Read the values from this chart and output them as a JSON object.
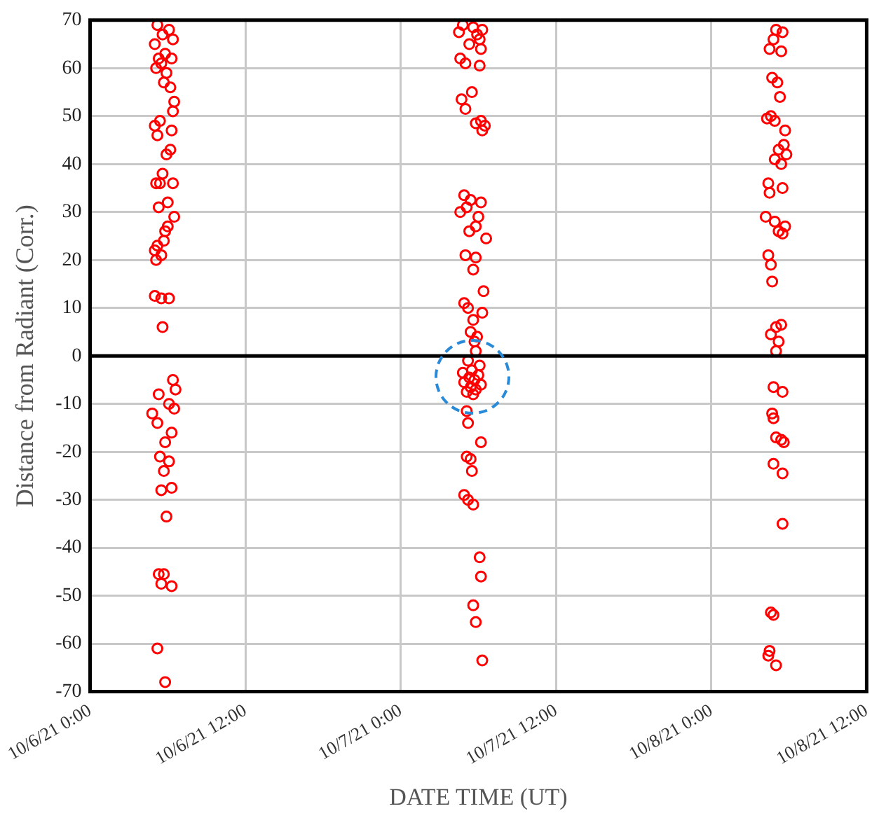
{
  "chart_data": {
    "type": "scatter",
    "xlabel": "DATE TIME (UT)",
    "ylabel": "Distance from Radiant (Corr.)",
    "x": [
      "--10-06T05:12",
      "--10-06T06:06",
      "--10-06T05:36",
      "--10-06T06:24",
      "--10-06T05:00",
      "--10-06T05:48",
      "--10-06T05:18",
      "--10-06T06:18",
      "--10-06T05:30",
      "--10-06T05:06",
      "--10-06T05:54",
      "--10-06T05:42",
      "--10-06T06:12",
      "--10-06T06:30",
      "--10-06T06:24",
      "--10-06T05:24",
      "--10-06T05:00",
      "--10-06T06:18",
      "--10-06T05:12",
      "--10-06T06:12",
      "--10-06T05:54",
      "--10-06T05:36",
      "--10-06T05:06",
      "--10-06T05:24",
      "--10-06T06:24",
      "--10-06T06:00",
      "--10-06T05:18",
      "--10-06T06:30",
      "--10-06T06:00",
      "--10-06T05:48",
      "--10-06T05:42",
      "--10-06T05:12",
      "--10-06T05:00",
      "--10-06T05:30",
      "--10-06T05:06",
      "--10-06T05:00",
      "--10-06T05:30",
      "--10-06T06:06",
      "--10-06T05:36",
      "--10-06T06:24",
      "--10-06T06:36",
      "--10-06T05:18",
      "--10-06T06:06",
      "--10-06T06:30",
      "--10-06T04:48",
      "--10-06T05:12",
      "--10-06T06:18",
      "--10-06T05:48",
      "--10-06T05:24",
      "--10-06T06:06",
      "--10-06T05:42",
      "--10-06T06:18",
      "--10-06T05:30",
      "--10-06T05:54",
      "--10-06T05:18",
      "--10-06T05:30",
      "--10-06T06:18",
      "--10-06T05:12",
      "--10-06T05:48",
      "--10-06T05:42",
      "--10-07T04:48",
      "--10-07T05:36",
      "--10-07T06:18",
      "--10-07T04:30",
      "--10-07T05:54",
      "--10-07T06:06",
      "--10-07T05:18",
      "--10-07T06:12",
      "--10-07T04:36",
      "--10-07T05:00",
      "--10-07T06:06",
      "--10-07T05:30",
      "--10-07T04:42",
      "--10-07T05:00",
      "--10-07T06:12",
      "--10-07T05:48",
      "--10-07T06:30",
      "--10-07T06:18",
      "--10-07T04:54",
      "--10-07T05:24",
      "--10-07T06:12",
      "--10-07T05:06",
      "--10-07T04:36",
      "--10-07T06:00",
      "--10-07T05:48",
      "--10-07T05:18",
      "--10-07T06:36",
      "--10-07T05:00",
      "--10-07T05:48",
      "--10-07T05:36",
      "--10-07T06:24",
      "--10-07T04:54",
      "--10-07T05:12",
      "--10-07T06:18",
      "--10-07T05:36",
      "--10-07T05:24",
      "--10-07T05:54",
      "--10-07T05:42",
      "--10-07T05:48",
      "--10-07T05:12",
      "--10-07T06:06",
      "--10-07T05:30",
      "--10-07T04:48",
      "--10-07T06:00",
      "--10-07T05:18",
      "--10-07T05:42",
      "--10-07T04:54",
      "--10-07T06:12",
      "--10-07T05:24",
      "--10-07T05:48",
      "--10-07T05:06",
      "--10-07T05:36",
      "--10-07T05:06",
      "--10-07T05:12",
      "--10-07T06:12",
      "--10-07T05:06",
      "--10-07T05:24",
      "--10-07T05:30",
      "--10-07T04:54",
      "--10-07T05:12",
      "--10-07T05:36",
      "--10-07T06:06",
      "--10-07T06:12",
      "--10-07T05:36",
      "--10-07T05:48",
      "--10-07T06:18",
      "--10-08T05:00",
      "--10-08T05:30",
      "--10-08T04:48",
      "--10-08T04:30",
      "--10-08T05:24",
      "--10-08T04:42",
      "--10-08T05:06",
      "--10-08T05:18",
      "--10-08T04:36",
      "--10-08T04:18",
      "--10-08T04:54",
      "--10-08T05:42",
      "--10-08T05:36",
      "--10-08T05:12",
      "--10-08T05:48",
      "--10-08T04:54",
      "--10-08T05:24",
      "--10-08T04:24",
      "--10-08T05:30",
      "--10-08T04:30",
      "--10-08T04:12",
      "--10-08T04:54",
      "--10-08T05:42",
      "--10-08T05:12",
      "--10-08T05:30",
      "--10-08T04:24",
      "--10-08T04:36",
      "--10-08T04:42",
      "--10-08T05:24",
      "--10-08T05:00",
      "--10-08T04:36",
      "--10-08T05:12",
      "--10-08T05:00",
      "--10-08T04:48",
      "--10-08T05:30",
      "--10-08T04:42",
      "--10-08T04:48",
      "--10-08T05:00",
      "--10-08T05:24",
      "--10-08T05:36",
      "--10-08T04:48",
      "--10-08T05:30",
      "--10-08T05:30",
      "--10-08T04:36",
      "--10-08T04:48",
      "--10-08T04:30",
      "--10-08T04:24",
      "--10-08T05:00"
    ],
    "values": [
      69,
      68,
      67,
      66,
      65,
      63,
      62,
      62,
      61,
      60,
      59,
      57,
      56,
      53,
      51,
      49,
      48,
      47,
      46,
      43,
      42,
      38,
      36,
      36,
      36,
      32,
      31,
      29,
      27,
      26,
      24,
      23,
      22,
      21,
      20,
      12.5,
      12,
      12,
      6,
      -5,
      -7,
      -8,
      -10,
      -11,
      -12,
      -14,
      -16,
      -18,
      -21,
      -22,
      -24,
      -27.5,
      -28,
      -33.5,
      -45.5,
      -47.5,
      -48,
      -61,
      -68,
      -45.5,
      69,
      68.5,
      68,
      67.5,
      67,
      66,
      65,
      64,
      62,
      61,
      60.5,
      55,
      53.5,
      51.5,
      49,
      48.5,
      48,
      47,
      33.5,
      32.5,
      32,
      31,
      30,
      29,
      27,
      26,
      24.5,
      21,
      20.5,
      18,
      13.5,
      11,
      10,
      9,
      7.5,
      5,
      4,
      3,
      1,
      -1,
      -2,
      -3,
      -3.5,
      -4,
      -4.5,
      -5,
      -5.5,
      -6,
      -6.5,
      -7,
      -7.5,
      -8,
      -11.5,
      -14,
      -18,
      -21,
      -21.5,
      -24,
      -29,
      -30,
      -31,
      -42,
      -46,
      -52,
      -55.5,
      -63.5,
      68,
      67.5,
      66,
      64,
      63.5,
      58,
      57,
      54,
      50,
      49.5,
      49,
      47,
      44,
      43,
      42,
      41,
      40,
      36,
      35,
      34,
      29,
      28,
      27,
      26,
      25.5,
      21,
      19,
      15.5,
      6.5,
      6,
      4.5,
      3,
      1,
      -6.5,
      -7.5,
      -12,
      -13,
      -17,
      -17.5,
      -18,
      -22.5,
      -24.5,
      -35,
      -53.5,
      -54,
      -61.5,
      -62.5,
      -64.5
    ],
    "color": "#ff0000",
    "marker": "circle",
    "xlim": [
      "--10-06T00:00",
      "--10-08T12:00"
    ],
    "xticks": [
      {
        "value": "--10-06T00:00",
        "label": "10/6/21 0:00"
      },
      {
        "value": "--10-06T12:00",
        "label": "10/6/21 12:00"
      },
      {
        "value": "--10-07T00:00",
        "label": "10/7/21 0:00"
      },
      {
        "value": "--10-07T12:00",
        "label": "10/7/21 12:00"
      },
      {
        "value": "--10-08T00:00",
        "label": "10/8/21 0:00"
      },
      {
        "value": "--10-08T12:00",
        "label": "10/8/21 12:00"
      }
    ],
    "ylim": [
      -70,
      70
    ],
    "yticks": [
      -70,
      -60,
      -50,
      -40,
      -30,
      -20,
      -10,
      0,
      10,
      20,
      30,
      40,
      50,
      60,
      70
    ],
    "ref_lines": [
      {
        "axis": "y",
        "value": 0,
        "color": "#000000"
      }
    ],
    "grid": true
  }
}
